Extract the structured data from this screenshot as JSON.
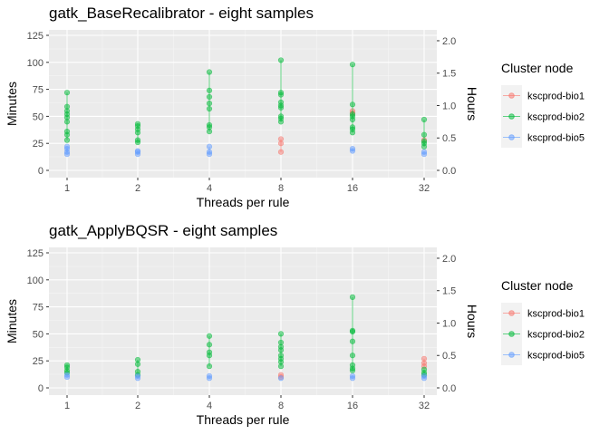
{
  "chart_data": [
    {
      "type": "scatter",
      "title": "gatk_BaseRecalibrator - eight samples",
      "xlabel": "Threads per rule",
      "ylabel": "Minutes",
      "y2label": "Hours",
      "x_categories": [
        "1",
        "2",
        "4",
        "8",
        "16",
        "32"
      ],
      "ylim": [
        0,
        125
      ],
      "y_ticks": [
        "0",
        "25",
        "50",
        "75",
        "100",
        "125"
      ],
      "y2_ticks": [
        "0.0",
        "0.5",
        "1.0",
        "1.5",
        "2.0"
      ],
      "grid": true,
      "legend": {
        "title": "Cluster node",
        "position": "right"
      },
      "series": [
        {
          "name": "kscprod-bio1",
          "color": "#F8766D",
          "points": [
            [
              "8",
              17
            ],
            [
              "8",
              25
            ],
            [
              "8",
              29
            ],
            [
              "16",
              53
            ],
            [
              "16",
              55
            ],
            [
              "32",
              28
            ]
          ]
        },
        {
          "name": "kscprod-bio2",
          "color": "#00BA38",
          "points": [
            [
              "1",
              28
            ],
            [
              "1",
              33
            ],
            [
              "1",
              36
            ],
            [
              "1",
              45
            ],
            [
              "1",
              49
            ],
            [
              "1",
              52
            ],
            [
              "1",
              55
            ],
            [
              "1",
              59
            ],
            [
              "1",
              72
            ],
            [
              "2",
              26
            ],
            [
              "2",
              28
            ],
            [
              "2",
              35
            ],
            [
              "2",
              38
            ],
            [
              "2",
              41
            ],
            [
              "2",
              43
            ],
            [
              "4",
              36
            ],
            [
              "4",
              40
            ],
            [
              "4",
              42
            ],
            [
              "4",
              57
            ],
            [
              "4",
              62
            ],
            [
              "4",
              68
            ],
            [
              "4",
              74
            ],
            [
              "4",
              91
            ],
            [
              "8",
              45
            ],
            [
              "8",
              48
            ],
            [
              "8",
              50
            ],
            [
              "8",
              58
            ],
            [
              "8",
              60
            ],
            [
              "8",
              63
            ],
            [
              "8",
              70
            ],
            [
              "8",
              72
            ],
            [
              "8",
              102
            ],
            [
              "16",
              35
            ],
            [
              "16",
              38
            ],
            [
              "16",
              40
            ],
            [
              "16",
              47
            ],
            [
              "16",
              50
            ],
            [
              "16",
              52
            ],
            [
              "16",
              61
            ],
            [
              "16",
              98
            ],
            [
              "32",
              22
            ],
            [
              "32",
              25
            ],
            [
              "32",
              27
            ],
            [
              "32",
              33
            ],
            [
              "32",
              47
            ]
          ]
        },
        {
          "name": "kscprod-bio5",
          "color": "#619CFF",
          "points": [
            [
              "1",
              15
            ],
            [
              "1",
              17
            ],
            [
              "1",
              20
            ],
            [
              "1",
              22
            ],
            [
              "2",
              15
            ],
            [
              "2",
              17
            ],
            [
              "2",
              18
            ],
            [
              "4",
              15
            ],
            [
              "4",
              17
            ],
            [
              "4",
              22
            ],
            [
              "16",
              18
            ],
            [
              "16",
              20
            ],
            [
              "32",
              15
            ],
            [
              "32",
              17
            ]
          ]
        }
      ]
    },
    {
      "type": "scatter",
      "title": "gatk_ApplyBQSR - eight samples",
      "xlabel": "Threads per rule",
      "ylabel": "Minutes",
      "y2label": "Hours",
      "x_categories": [
        "1",
        "2",
        "4",
        "8",
        "16",
        "32"
      ],
      "ylim": [
        0,
        125
      ],
      "y_ticks": [
        "0",
        "25",
        "50",
        "75",
        "100",
        "125"
      ],
      "y2_ticks": [
        "0.0",
        "0.5",
        "1.0",
        "1.5",
        "2.0"
      ],
      "grid": true,
      "legend": {
        "title": "Cluster node",
        "position": "right"
      },
      "series": [
        {
          "name": "kscprod-bio1",
          "color": "#F8766D",
          "points": [
            [
              "8",
              10
            ],
            [
              "8",
              12
            ],
            [
              "32",
              20
            ],
            [
              "32",
              23
            ],
            [
              "32",
              27
            ]
          ]
        },
        {
          "name": "kscprod-bio2",
          "color": "#00BA38",
          "points": [
            [
              "1",
              14
            ],
            [
              "1",
              16
            ],
            [
              "1",
              19
            ],
            [
              "1",
              21
            ],
            [
              "2",
              12
            ],
            [
              "2",
              15
            ],
            [
              "2",
              22
            ],
            [
              "2",
              26
            ],
            [
              "4",
              20
            ],
            [
              "4",
              30
            ],
            [
              "4",
              33
            ],
            [
              "4",
              40
            ],
            [
              "4",
              48
            ],
            [
              "8",
              20
            ],
            [
              "8",
              24
            ],
            [
              "8",
              27
            ],
            [
              "8",
              30
            ],
            [
              "8",
              35
            ],
            [
              "8",
              38
            ],
            [
              "8",
              42
            ],
            [
              "8",
              50
            ],
            [
              "16",
              16
            ],
            [
              "16",
              18
            ],
            [
              "16",
              21
            ],
            [
              "16",
              30
            ],
            [
              "16",
              43
            ],
            [
              "16",
              52
            ],
            [
              "16",
              53
            ],
            [
              "16",
              84
            ],
            [
              "32",
              12
            ],
            [
              "32",
              14
            ],
            [
              "32",
              17
            ]
          ]
        },
        {
          "name": "kscprod-bio5",
          "color": "#619CFF",
          "points": [
            [
              "1",
              10
            ],
            [
              "1",
              12
            ],
            [
              "2",
              9
            ],
            [
              "2",
              11
            ],
            [
              "4",
              9
            ],
            [
              "4",
              11
            ],
            [
              "8",
              9
            ],
            [
              "16",
              9
            ],
            [
              "16",
              11
            ],
            [
              "32",
              9
            ],
            [
              "32",
              11
            ]
          ]
        }
      ]
    }
  ]
}
